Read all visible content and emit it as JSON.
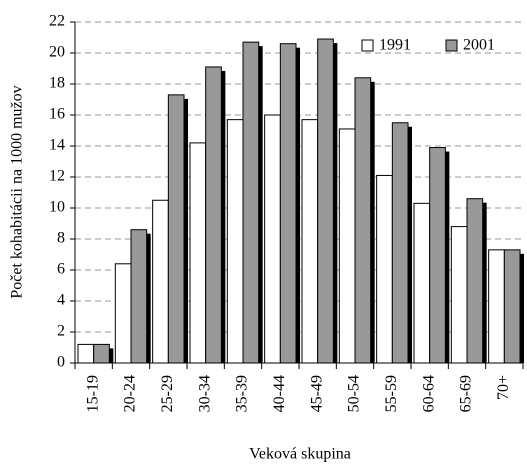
{
  "chart_data": {
    "type": "bar",
    "x_label": "Veková skupina",
    "y_label": "Počet kohabitácii na 1000 mužov",
    "categories": [
      "15-19",
      "20-24",
      "25-29",
      "30-34",
      "35-39",
      "40-44",
      "45-49",
      "50-54",
      "55-59",
      "60-64",
      "65-69",
      "70+"
    ],
    "series": [
      {
        "name": "1991",
        "color": "#ffffff",
        "values": [
          1.2,
          6.4,
          10.5,
          14.2,
          15.7,
          16.0,
          15.7,
          15.1,
          12.1,
          10.3,
          8.8,
          7.3
        ]
      },
      {
        "name": "2001",
        "color": "#999999",
        "values": [
          1.2,
          8.6,
          17.3,
          19.1,
          20.7,
          20.6,
          20.9,
          18.4,
          15.5,
          13.9,
          10.6,
          7.3
        ]
      }
    ],
    "ylim": [
      0,
      22
    ],
    "yticks": [
      0,
      2,
      4,
      6,
      8,
      10,
      12,
      14,
      16,
      18,
      20,
      22
    ],
    "grid": true,
    "legend": "top-right"
  }
}
